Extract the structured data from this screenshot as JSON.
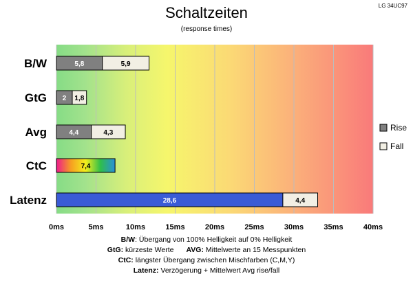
{
  "header": {
    "title": "Schaltzeiten",
    "subtitle": "(response times)",
    "monitor": "LG 34UC97"
  },
  "legend": [
    {
      "name": "Rise",
      "color": "#808080"
    },
    {
      "name": "Fall",
      "color": "#f2efe4"
    }
  ],
  "chart_data": {
    "type": "bar",
    "orientation": "horizontal",
    "stacked": true,
    "title": "Schaltzeiten",
    "subtitle": "(response times)",
    "xlabel": "",
    "ylabel": "",
    "xlim": [
      0,
      40
    ],
    "x_ticks": [
      "0ms",
      "5ms",
      "10ms",
      "15ms",
      "20ms",
      "25ms",
      "30ms",
      "35ms",
      "40ms"
    ],
    "categories": [
      "B/W",
      "GtG",
      "Avg",
      "CtC",
      "Latenz"
    ],
    "rows": [
      {
        "category": "B/W",
        "segments": [
          {
            "series": "Rise",
            "value": 5.8,
            "label": "5,8",
            "fill": "#808080",
            "text_color": "#ffffff"
          },
          {
            "series": "Fall",
            "value": 5.9,
            "label": "5,9",
            "fill": "#f2efe4",
            "text_color": "#000000"
          }
        ]
      },
      {
        "category": "GtG",
        "segments": [
          {
            "series": "Rise",
            "value": 2,
            "label": "2",
            "fill": "#808080",
            "text_color": "#ffffff"
          },
          {
            "series": "Fall",
            "value": 1.8,
            "label": "1,8",
            "fill": "#f2efe4",
            "text_color": "#000000"
          }
        ]
      },
      {
        "category": "Avg",
        "segments": [
          {
            "series": "Rise",
            "value": 4.4,
            "label": "4,4",
            "fill": "#808080",
            "text_color": "#ffffff"
          },
          {
            "series": "Fall",
            "value": 4.3,
            "label": "4,3",
            "fill": "#f2efe4",
            "text_color": "#000000"
          }
        ]
      },
      {
        "category": "CtC",
        "segments": [
          {
            "series": "CtC",
            "value": 7.4,
            "label": "7,4",
            "fill": "rainbow",
            "text_color": "#000000"
          }
        ]
      },
      {
        "category": "Latenz",
        "segments": [
          {
            "series": "Latenz",
            "value": 28.6,
            "label": "28,6",
            "fill": "#3a5bd6",
            "text_color": "#ffffff"
          },
          {
            "series": "Fall",
            "value": 4.4,
            "label": "4,4",
            "fill": "#f2efe4",
            "text_color": "#000000"
          }
        ]
      }
    ],
    "legend_position": "right",
    "background": "green-yellow-red gradient",
    "grid": "vertical"
  },
  "notes": {
    "line1_key": "B/W",
    "line1_text": ":  Übergang von 100% Helligkeit auf 0% Helligkeit",
    "line2_key": "GtG:",
    "line2_text": " kürzeste  Werte",
    "line2_key2": "AVG:",
    "line2_text2": " Mittelwerte  an 15 Messpunkten",
    "line3_key": "CtC:",
    "line3_text": " längster Übergang  zwischen Mischfarben  (C,M,Y)",
    "line4_key": "Latenz:",
    "line4_text": " Verzögerung  + Mittelwert  Avg rise/fall"
  }
}
